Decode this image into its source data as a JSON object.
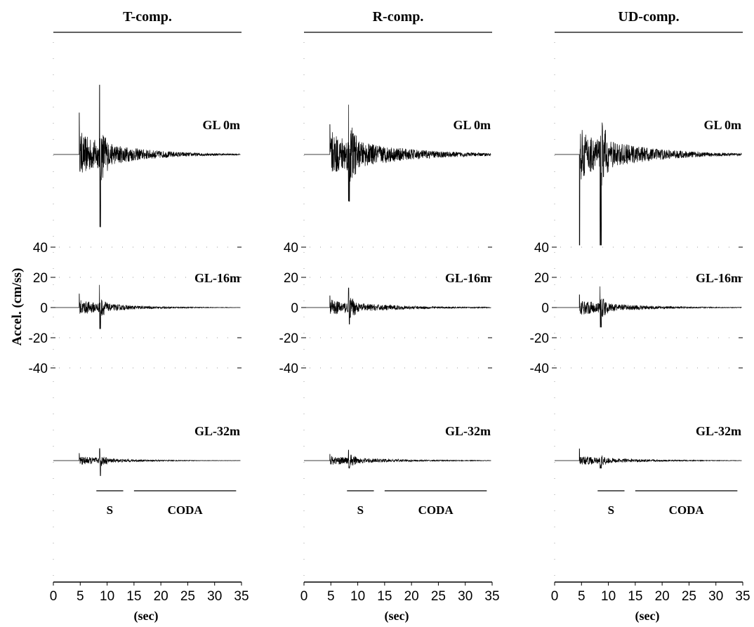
{
  "chart_data": {
    "type": "line",
    "ylabel": "Accel. (cm/ss)",
    "xlabel": "(sec)",
    "xlim": [
      0,
      35
    ],
    "xticks": [
      "0",
      "5",
      "10",
      "15",
      "20",
      "25",
      "30",
      "35"
    ],
    "ylim_per_trace": [
      -40,
      40
    ],
    "yticks": [
      "40",
      "20",
      "0",
      "-20",
      "-40"
    ],
    "grid": "dotted",
    "panels": [
      {
        "title": "T-comp.",
        "traces": [
          {
            "name": "GL 0m",
            "onset": 4.8,
            "second_arrival": 8.6,
            "peak_pos": 46,
            "peak_neg": -48,
            "amp": 14,
            "decay": 0.115
          },
          {
            "name": "GL-16m",
            "onset": 4.8,
            "second_arrival": 8.6,
            "peak_pos": 15,
            "peak_neg": -14,
            "amp": 5,
            "decay": 0.13
          },
          {
            "name": "GL-32m",
            "onset": 4.8,
            "second_arrival": 8.6,
            "peak_pos": 8,
            "peak_neg": -10,
            "amp": 3,
            "decay": 0.13
          }
        ],
        "windows": [
          {
            "label": "S",
            "start": 8.0,
            "end": 13.0
          },
          {
            "label": "CODA",
            "start": 15.0,
            "end": 34.0
          }
        ]
      },
      {
        "title": "R-comp.",
        "traces": [
          {
            "name": "GL 0m",
            "onset": 4.8,
            "second_arrival": 8.3,
            "peak_pos": 33,
            "peak_neg": -31,
            "amp": 14,
            "decay": 0.09
          },
          {
            "name": "GL-16m",
            "onset": 4.8,
            "second_arrival": 8.3,
            "peak_pos": 13,
            "peak_neg": -11,
            "amp": 5,
            "decay": 0.1
          },
          {
            "name": "GL-32m",
            "onset": 4.8,
            "second_arrival": 8.3,
            "peak_pos": 7,
            "peak_neg": -5,
            "amp": 3,
            "decay": 0.1
          }
        ],
        "windows": [
          {
            "label": "S",
            "start": 8.0,
            "end": 13.0
          },
          {
            "label": "CODA",
            "start": 15.0,
            "end": 34.0
          }
        ]
      },
      {
        "title": "UD-comp.",
        "traces": [
          {
            "name": "GL 0m",
            "onset": 4.6,
            "second_arrival": 8.5,
            "peak_pos": 60,
            "peak_neg": -60,
            "amp": 16,
            "decay": 0.1
          },
          {
            "name": "GL-16m",
            "onset": 4.6,
            "second_arrival": 8.5,
            "peak_pos": 14,
            "peak_neg": -13,
            "amp": 5,
            "decay": 0.11
          },
          {
            "name": "GL-32m",
            "onset": 4.6,
            "second_arrival": 8.5,
            "peak_pos": 13,
            "peak_neg": -5,
            "amp": 3,
            "decay": 0.11
          }
        ],
        "windows": [
          {
            "label": "S",
            "start": 8.0,
            "end": 13.0
          },
          {
            "label": "CODA",
            "start": 15.0,
            "end": 34.0
          }
        ]
      }
    ]
  }
}
